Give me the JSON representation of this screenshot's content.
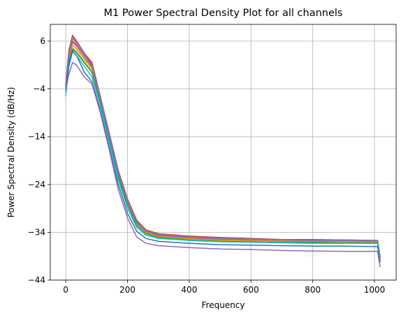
{
  "chart_data": {
    "type": "line",
    "title": "M1 Power Spectral Density Plot for all channels",
    "xlabel": "Frequency",
    "ylabel": "Power Spectral Density (dB/Hz)",
    "xlim": [
      -50,
      1070
    ],
    "ylim": [
      -44,
      9.5
    ],
    "xticks": [
      0,
      200,
      400,
      600,
      800,
      1000
    ],
    "yticks": [
      6,
      -4,
      -14,
      -24,
      -34,
      -44
    ],
    "grid": true,
    "series": [
      {
        "color": "#d62728",
        "values": [
          [
            0,
            -3
          ],
          [
            10,
            4
          ],
          [
            22,
            7.2
          ],
          [
            35,
            6
          ],
          [
            60,
            3.5
          ],
          [
            85,
            1.5
          ],
          [
            110,
            -5
          ],
          [
            140,
            -13
          ],
          [
            170,
            -21
          ],
          [
            200,
            -27
          ],
          [
            230,
            -31.5
          ],
          [
            260,
            -33.5
          ],
          [
            300,
            -34.3
          ],
          [
            400,
            -34.8
          ],
          [
            500,
            -35.1
          ],
          [
            600,
            -35.3
          ],
          [
            700,
            -35.5
          ],
          [
            800,
            -35.5
          ],
          [
            900,
            -35.6
          ],
          [
            1010,
            -35.7
          ],
          [
            1018,
            -39
          ]
        ]
      },
      {
        "color": "#e377c2",
        "values": [
          [
            0,
            -3.2
          ],
          [
            10,
            3.5
          ],
          [
            22,
            6.5
          ],
          [
            35,
            5.5
          ],
          [
            60,
            3
          ],
          [
            85,
            1
          ],
          [
            110,
            -5.3
          ],
          [
            140,
            -13.3
          ],
          [
            170,
            -21.3
          ],
          [
            200,
            -27.3
          ],
          [
            230,
            -31.8
          ],
          [
            260,
            -33.7
          ],
          [
            300,
            -34.5
          ],
          [
            400,
            -35
          ],
          [
            500,
            -35.3
          ],
          [
            600,
            -35.4
          ],
          [
            700,
            -35.6
          ],
          [
            800,
            -35.7
          ],
          [
            900,
            -35.7
          ],
          [
            1010,
            -35.8
          ],
          [
            1018,
            -39.5
          ]
        ]
      },
      {
        "color": "#8c564b",
        "values": [
          [
            0,
            -3.5
          ],
          [
            10,
            3
          ],
          [
            22,
            5.8
          ],
          [
            35,
            5
          ],
          [
            60,
            2.8
          ],
          [
            85,
            0.8
          ],
          [
            110,
            -5.5
          ],
          [
            140,
            -13.5
          ],
          [
            170,
            -21.5
          ],
          [
            200,
            -27.5
          ],
          [
            230,
            -32
          ],
          [
            260,
            -33.9
          ],
          [
            300,
            -34.7
          ],
          [
            400,
            -35.2
          ],
          [
            500,
            -35.5
          ],
          [
            600,
            -35.6
          ],
          [
            700,
            -35.7
          ],
          [
            800,
            -35.8
          ],
          [
            900,
            -35.8
          ],
          [
            1010,
            -35.9
          ],
          [
            1018,
            -40
          ]
        ]
      },
      {
        "color": "#7f7f7f",
        "values": [
          [
            0,
            -3
          ],
          [
            10,
            3.8
          ],
          [
            22,
            6.7
          ],
          [
            35,
            5.8
          ],
          [
            60,
            3.3
          ],
          [
            85,
            1.2
          ],
          [
            110,
            -5.2
          ],
          [
            140,
            -13.2
          ],
          [
            170,
            -21.2
          ],
          [
            200,
            -27.2
          ],
          [
            230,
            -31.7
          ],
          [
            260,
            -33.6
          ],
          [
            300,
            -34.4
          ],
          [
            400,
            -34.9
          ],
          [
            500,
            -35.2
          ],
          [
            600,
            -35.4
          ],
          [
            700,
            -35.5
          ],
          [
            800,
            -35.6
          ],
          [
            900,
            -35.6
          ],
          [
            1010,
            -35.7
          ],
          [
            1018,
            -39.2
          ]
        ]
      },
      {
        "color": "#bcbd22",
        "values": [
          [
            0,
            -3.8
          ],
          [
            10,
            2
          ],
          [
            22,
            4.6
          ],
          [
            35,
            3.8
          ],
          [
            60,
            1.8
          ],
          [
            85,
            -0.2
          ],
          [
            110,
            -6
          ],
          [
            140,
            -14
          ],
          [
            170,
            -22
          ],
          [
            200,
            -28
          ],
          [
            230,
            -32.3
          ],
          [
            260,
            -34.1
          ],
          [
            300,
            -34.9
          ],
          [
            400,
            -35.4
          ],
          [
            500,
            -35.7
          ],
          [
            600,
            -35.8
          ],
          [
            700,
            -35.9
          ],
          [
            800,
            -36
          ],
          [
            900,
            -36
          ],
          [
            1010,
            -36.1
          ],
          [
            1018,
            -39.6
          ]
        ]
      },
      {
        "color": "#ff7f0e",
        "values": [
          [
            0,
            -3.6
          ],
          [
            10,
            2.5
          ],
          [
            22,
            5.2
          ],
          [
            35,
            4.4
          ],
          [
            60,
            2.3
          ],
          [
            85,
            0.3
          ],
          [
            110,
            -5.8
          ],
          [
            140,
            -13.8
          ],
          [
            170,
            -21.8
          ],
          [
            200,
            -27.8
          ],
          [
            230,
            -32.2
          ],
          [
            260,
            -34
          ],
          [
            300,
            -34.8
          ],
          [
            400,
            -35.3
          ],
          [
            500,
            -35.6
          ],
          [
            600,
            -35.7
          ],
          [
            700,
            -35.8
          ],
          [
            800,
            -35.9
          ],
          [
            900,
            -35.9
          ],
          [
            1010,
            -36
          ],
          [
            1018,
            -39.4
          ]
        ]
      },
      {
        "color": "#2ca02c",
        "values": [
          [
            0,
            -4
          ],
          [
            10,
            1.8
          ],
          [
            22,
            4.3
          ],
          [
            35,
            3.6
          ],
          [
            60,
            1.5
          ],
          [
            85,
            -0.6
          ],
          [
            110,
            -6.3
          ],
          [
            140,
            -14.3
          ],
          [
            170,
            -22.3
          ],
          [
            200,
            -28.3
          ],
          [
            230,
            -32.6
          ],
          [
            260,
            -34.3
          ],
          [
            300,
            -35.1
          ],
          [
            400,
            -35.6
          ],
          [
            500,
            -35.9
          ],
          [
            600,
            -36
          ],
          [
            700,
            -36.1
          ],
          [
            800,
            -36.1
          ],
          [
            900,
            -36.2
          ],
          [
            1010,
            -36.2
          ],
          [
            1018,
            -39.8
          ]
        ]
      },
      {
        "color": "#9467bd",
        "values": [
          [
            0,
            -3.4
          ],
          [
            10,
            3.2
          ],
          [
            22,
            6
          ],
          [
            35,
            5.2
          ],
          [
            60,
            2.8
          ],
          [
            85,
            0.6
          ],
          [
            110,
            -5.6
          ],
          [
            140,
            -13.6
          ],
          [
            170,
            -21.6
          ],
          [
            200,
            -27.6
          ],
          [
            230,
            -32
          ],
          [
            260,
            -33.8
          ],
          [
            300,
            -34.6
          ],
          [
            400,
            -35.1
          ],
          [
            500,
            -35.4
          ],
          [
            600,
            -35.5
          ],
          [
            700,
            -35.6
          ],
          [
            800,
            -35.7
          ],
          [
            900,
            -35.7
          ],
          [
            1010,
            -35.8
          ],
          [
            1018,
            -39.3
          ]
        ]
      },
      {
        "color": "#17becf",
        "values": [
          [
            0,
            -5.5
          ],
          [
            10,
            0.5
          ],
          [
            22,
            3.8
          ],
          [
            35,
            3
          ],
          [
            60,
            0.8
          ],
          [
            85,
            -1.5
          ],
          [
            110,
            -7
          ],
          [
            140,
            -15
          ],
          [
            170,
            -23
          ],
          [
            200,
            -29
          ],
          [
            230,
            -33
          ],
          [
            260,
            -34.6
          ],
          [
            300,
            -35.3
          ],
          [
            400,
            -35.7
          ],
          [
            500,
            -36
          ],
          [
            600,
            -36.1
          ],
          [
            700,
            -36.2
          ],
          [
            800,
            -36.3
          ],
          [
            900,
            -36.3
          ],
          [
            1010,
            -36.3
          ],
          [
            1018,
            -39.9
          ]
        ]
      },
      {
        "color": "#1f77b4",
        "values": [
          [
            0,
            -4.5
          ],
          [
            10,
            1
          ],
          [
            22,
            4
          ],
          [
            35,
            3
          ],
          [
            60,
            -0.5
          ],
          [
            85,
            -2.5
          ],
          [
            110,
            -8
          ],
          [
            140,
            -16
          ],
          [
            170,
            -24
          ],
          [
            200,
            -30
          ],
          [
            230,
            -33.8
          ],
          [
            260,
            -35.3
          ],
          [
            300,
            -35.9
          ],
          [
            400,
            -36.3
          ],
          [
            500,
            -36.6
          ],
          [
            600,
            -36.7
          ],
          [
            700,
            -36.8
          ],
          [
            800,
            -36.9
          ],
          [
            900,
            -36.9
          ],
          [
            1010,
            -37
          ],
          [
            1018,
            -40.2
          ]
        ]
      },
      {
        "color": "#9467bd",
        "values": [
          [
            0,
            -4.2
          ],
          [
            10,
            -1
          ],
          [
            22,
            1.5
          ],
          [
            35,
            1
          ],
          [
            60,
            -1.5
          ],
          [
            85,
            -3
          ],
          [
            110,
            -8.5
          ],
          [
            140,
            -16.5
          ],
          [
            170,
            -25
          ],
          [
            200,
            -31
          ],
          [
            230,
            -35
          ],
          [
            260,
            -36.3
          ],
          [
            300,
            -36.8
          ],
          [
            400,
            -37.2
          ],
          [
            500,
            -37.5
          ],
          [
            600,
            -37.6
          ],
          [
            700,
            -37.8
          ],
          [
            800,
            -37.9
          ],
          [
            900,
            -38
          ],
          [
            1010,
            -38
          ],
          [
            1018,
            -41.2
          ]
        ]
      }
    ]
  }
}
